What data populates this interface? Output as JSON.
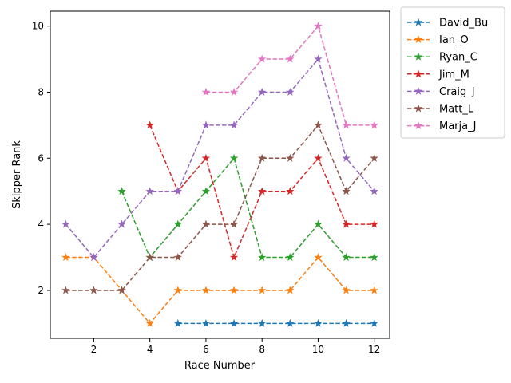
{
  "chart_data": {
    "type": "line",
    "xlabel": "Race Number",
    "ylabel": "Skipper Rank",
    "xlim": [
      0.45,
      12.55
    ],
    "ylim": [
      0.55,
      10.45
    ],
    "xticks": [
      2,
      4,
      6,
      8,
      10,
      12
    ],
    "yticks": [
      2,
      4,
      6,
      8,
      10
    ],
    "grid": false,
    "legend_position": "outside-top-right",
    "line_style": "dashed",
    "marker": "star",
    "series": [
      {
        "name": "David_Bu",
        "color": "#1f77b4",
        "x": [
          5,
          6,
          7,
          8,
          9,
          10,
          11,
          12
        ],
        "y": [
          1,
          1,
          1,
          1,
          1,
          1,
          1,
          1
        ]
      },
      {
        "name": "Ian_O",
        "color": "#ff7f0e",
        "x": [
          1,
          2,
          3,
          4,
          5,
          6,
          7,
          8,
          9,
          10,
          11,
          12
        ],
        "y": [
          3,
          3,
          2,
          1,
          2,
          2,
          2,
          2,
          2,
          3,
          2,
          2
        ]
      },
      {
        "name": "Ryan_C",
        "color": "#2ca02c",
        "x": [
          3,
          4,
          5,
          6,
          7,
          8,
          9,
          10,
          11,
          12
        ],
        "y": [
          5,
          3,
          4,
          5,
          6,
          3,
          3,
          4,
          3,
          3
        ]
      },
      {
        "name": "Jim_M",
        "color": "#d62728",
        "x": [
          4,
          5,
          6,
          7,
          8,
          9,
          10,
          11,
          12
        ],
        "y": [
          7,
          5,
          6,
          3,
          5,
          5,
          6,
          4,
          4
        ]
      },
      {
        "name": "Craig_J",
        "color": "#9467bd",
        "x": [
          1,
          2,
          3,
          4,
          5,
          6,
          7,
          8,
          9,
          10,
          11,
          12
        ],
        "y": [
          4,
          3,
          4,
          5,
          5,
          7,
          7,
          8,
          8,
          9,
          6,
          5
        ]
      },
      {
        "name": "Matt_L",
        "color": "#8c564b",
        "x": [
          1,
          2,
          3,
          4,
          5,
          6,
          7,
          8,
          9,
          10,
          11,
          12
        ],
        "y": [
          2,
          2,
          2,
          3,
          3,
          4,
          4,
          6,
          6,
          7,
          5,
          6
        ]
      },
      {
        "name": "Marja_J",
        "color": "#e377c2",
        "x": [
          6,
          7,
          8,
          9,
          10,
          11,
          12
        ],
        "y": [
          8,
          8,
          9,
          9,
          10,
          7,
          7
        ]
      }
    ]
  }
}
